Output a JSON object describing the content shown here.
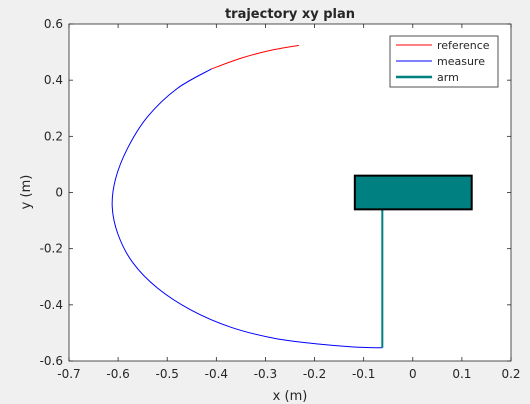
{
  "chart_data": {
    "type": "line",
    "title": "trajectory xy plan",
    "xlabel": "x (m)",
    "ylabel": "y (m)",
    "xlim": [
      -0.7,
      0.2
    ],
    "ylim": [
      -0.6,
      0.6
    ],
    "xticks": [
      -0.7,
      -0.6,
      -0.5,
      -0.4,
      -0.3,
      -0.2,
      -0.1,
      0,
      0.1,
      0.2
    ],
    "yticks": [
      -0.6,
      -0.4,
      -0.2,
      0,
      0.2,
      0.4,
      0.6
    ],
    "grid": false,
    "legend_placement": "top-right",
    "series": [
      {
        "name": "reference",
        "color": "#ff0000",
        "x": [
          -0.232,
          -0.29,
          -0.35,
          -0.41
        ],
        "y": [
          0.524,
          0.506,
          0.478,
          0.44
        ]
      },
      {
        "name": "measure",
        "color": "#0000ff",
        "x": [
          -0.41,
          -0.48,
          -0.54,
          -0.58,
          -0.605,
          -0.612,
          -0.6,
          -0.57,
          -0.52,
          -0.45,
          -0.37,
          -0.28,
          -0.19,
          -0.12,
          -0.062
        ],
        "y": [
          0.44,
          0.37,
          0.27,
          0.16,
          0.05,
          -0.05,
          -0.15,
          -0.25,
          -0.34,
          -0.42,
          -0.48,
          -0.52,
          -0.54,
          -0.55,
          -0.553
        ]
      },
      {
        "name": "arm",
        "color": "#008080",
        "shaft": {
          "x": [
            -0.062,
            -0.062
          ],
          "y": [
            -0.553,
            -0.06
          ]
        },
        "box": {
          "x0": -0.118,
          "x1": 0.12,
          "y0": -0.06,
          "y1": 0.06,
          "fill": "#008080",
          "edge": "#000000"
        }
      }
    ]
  },
  "legend": {
    "items": [
      {
        "label": "reference",
        "color": "#ff0000"
      },
      {
        "label": "measure",
        "color": "#0000ff"
      },
      {
        "label": "arm",
        "color": "#008080"
      }
    ]
  }
}
